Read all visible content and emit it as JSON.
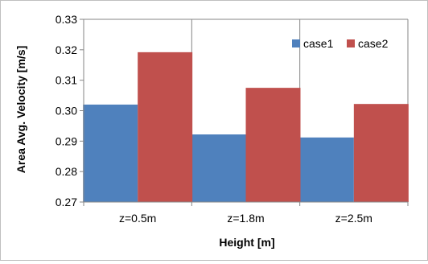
{
  "chart_data": {
    "type": "bar",
    "xlabel": "Height [m]",
    "ylabel": "Area Avg. Velocity [m/s]",
    "categories": [
      "z=0.5m",
      "z=1.8m",
      "z=2.5m"
    ],
    "series": [
      {
        "name": "case1",
        "color": "#4f81bd",
        "values": [
          0.302,
          0.2922,
          0.2912
        ]
      },
      {
        "name": "case2",
        "color": "#c0504d",
        "values": [
          0.3192,
          0.3075,
          0.3022
        ]
      }
    ],
    "ylim": [
      0.27,
      0.33
    ],
    "yticks": [
      "0.27",
      "0.28",
      "0.29",
      "0.30",
      "0.31",
      "0.32",
      "0.33"
    ],
    "grid": "vertical",
    "legend_position": "top-right"
  }
}
